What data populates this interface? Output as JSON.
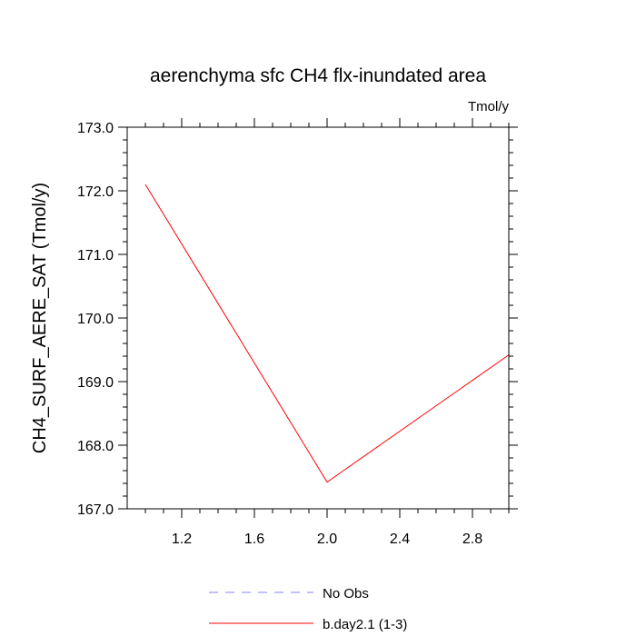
{
  "chart_data": {
    "type": "line",
    "title": "aerenchyma sfc CH4 flx-inundated area",
    "units": "Tmol/y",
    "xlabel": "",
    "ylabel": "CH4_SURF_AERE_SAT  (Tmol/y)",
    "xlim": [
      0.9,
      3.0
    ],
    "ylim": [
      167.0,
      173.0
    ],
    "x_ticks": [
      1.2,
      1.6,
      2.0,
      2.4,
      2.8
    ],
    "x_tick_labels": [
      "1.2",
      "1.6",
      "2.0",
      "2.4",
      "2.8"
    ],
    "y_ticks": [
      167.0,
      168.0,
      169.0,
      170.0,
      171.0,
      172.0,
      173.0
    ],
    "y_tick_labels": [
      "167.0",
      "168.0",
      "169.0",
      "170.0",
      "171.0",
      "172.0",
      "173.0"
    ],
    "grid": false,
    "legend_position": "bottom",
    "series": [
      {
        "name": "No Obs",
        "color": "#8080ff",
        "dash": true,
        "x": [],
        "y": []
      },
      {
        "name": "b.day2.1 (1-3)",
        "color": "#ff0000",
        "dash": false,
        "x": [
          1.0,
          2.0,
          3.0
        ],
        "y": [
          172.1,
          167.42,
          169.42
        ]
      }
    ]
  }
}
